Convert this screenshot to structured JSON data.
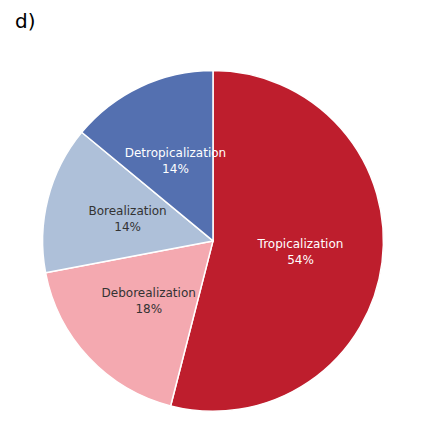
{
  "chart_data": {
    "type": "pie",
    "title": "d)",
    "categories": [
      "Tropicalization",
      "Deborealization",
      "Borealization",
      "Detropicalization"
    ],
    "values": [
      54,
      18,
      14,
      14
    ],
    "value_labels": [
      "54%",
      "18%",
      "14%",
      "14%"
    ],
    "colors": [
      "#be1e2d",
      "#f4a9b0",
      "#aec0d9",
      "#5470b0"
    ],
    "data_labels": true
  }
}
